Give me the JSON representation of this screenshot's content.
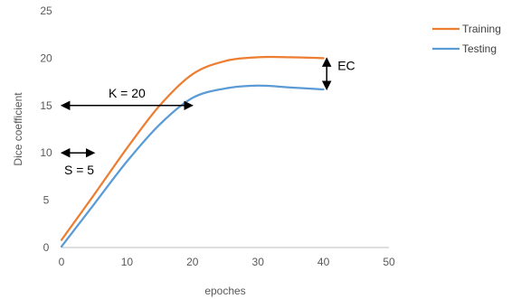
{
  "chart_data": {
    "type": "line",
    "title": "",
    "xlabel": "epoches",
    "ylabel": "Dice coefficient",
    "xlim": [
      0,
      50
    ],
    "ylim": [
      0,
      25
    ],
    "xticks": [
      0,
      10,
      20,
      30,
      40,
      50
    ],
    "yticks": [
      0,
      5,
      10,
      15,
      20,
      25
    ],
    "grid": false,
    "legend_position": "top-right",
    "series": [
      {
        "name": "Testing",
        "color": "#5B9BD5",
        "x": [
          0,
          5,
          10,
          15,
          20,
          25,
          30,
          35,
          40
        ],
        "y": [
          0.1,
          4.6,
          9.1,
          13.0,
          15.8,
          16.8,
          17.1,
          16.9,
          16.7
        ]
      },
      {
        "name": "Training",
        "color": "#ED7D31",
        "x": [
          0,
          5,
          10,
          15,
          20,
          25,
          30,
          35,
          40
        ],
        "y": [
          0.8,
          5.6,
          10.5,
          15.0,
          18.3,
          19.7,
          20.1,
          20.1,
          20.0
        ]
      }
    ],
    "annotations": [
      {
        "label": "K = 20",
        "type": "horizontal-arrow",
        "x": [
          0,
          20
        ],
        "y": 15
      },
      {
        "label": "S = 5",
        "type": "horizontal-arrow",
        "x": [
          0,
          5
        ],
        "y": 10
      },
      {
        "label": "EC",
        "type": "vertical-arrow",
        "x": 40.5,
        "y": [
          16.7,
          20.0
        ]
      }
    ]
  }
}
